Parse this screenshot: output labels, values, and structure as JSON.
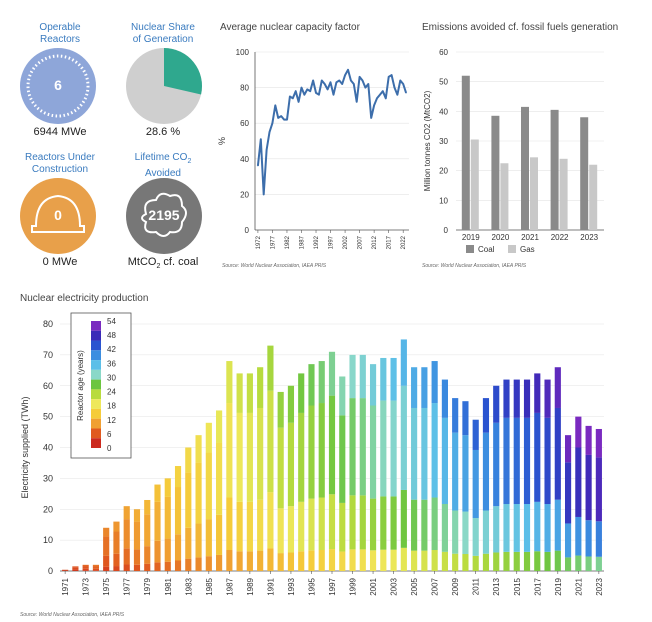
{
  "kpis": {
    "operable": {
      "title_line1": "Operable",
      "title_line2": "Reactors",
      "count": "6",
      "value": "6944 MWe",
      "color": "#8ea6d9"
    },
    "share": {
      "title_line1": "Nuclear Share",
      "title_line2": "of Generation",
      "value": "28.6 %",
      "percent": 28.6,
      "color": "#2fa88e"
    },
    "construction": {
      "title_line1": "Reactors Under",
      "title_line2": "Construction",
      "count": "0",
      "value": "0 MWe",
      "color": "#e8a04a"
    },
    "lifetime": {
      "title_line1": "Lifetime CO",
      "title_sub": "2",
      "title_line2": "Avoided",
      "count": "2195",
      "value": "MtCO",
      "value_sub": "2",
      "value_tail": " cf. coal",
      "color": "#777777"
    }
  },
  "capacity_factor": {
    "title": "Average nuclear capacity factor",
    "source": "Source: World Nuclear Association, IAEA PRIS",
    "chart_data": {
      "type": "line",
      "ylabel": "%",
      "ylim": [
        0,
        100
      ],
      "yticks": [
        0,
        20,
        40,
        60,
        80,
        100
      ],
      "xticks": [
        "1972",
        "1977",
        "1982",
        "1987",
        "1992",
        "1997",
        "2002",
        "2007",
        "2012",
        "2017",
        "2022"
      ],
      "color": "#3d6eab",
      "x": [
        1972,
        1973,
        1974,
        1975,
        1976,
        1977,
        1978,
        1979,
        1980,
        1981,
        1982,
        1983,
        1984,
        1985,
        1986,
        1987,
        1988,
        1989,
        1990,
        1991,
        1992,
        1993,
        1994,
        1995,
        1996,
        1997,
        1998,
        1999,
        2000,
        2001,
        2002,
        2003,
        2004,
        2005,
        2006,
        2007,
        2008,
        2009,
        2010,
        2011,
        2012,
        2013,
        2014,
        2015,
        2016,
        2017,
        2018,
        2019,
        2020,
        2021,
        2022,
        2023
      ],
      "y": [
        36,
        51,
        20,
        45,
        55,
        60,
        70,
        63,
        64,
        62,
        62,
        75,
        74,
        78,
        72,
        80,
        76,
        79,
        78,
        84,
        77,
        76,
        84,
        82,
        79,
        83,
        76,
        83,
        84,
        82,
        87,
        90,
        84,
        82,
        72,
        86,
        84,
        80,
        82,
        63,
        70,
        74,
        76,
        78,
        74,
        86,
        87,
        80,
        76,
        84,
        82,
        77
      ]
    }
  },
  "emissions": {
    "title": "Emissions avoided cf. fossil fuels generation",
    "source": "Source: World Nuclear Association, IAEA PRIS",
    "chart_data": {
      "type": "bar",
      "ylabel": "Million tonnes CO2 (MtCO2)",
      "ylim": [
        0,
        60
      ],
      "yticks": [
        0,
        10,
        20,
        30,
        40,
        50,
        60
      ],
      "categories": [
        "2019",
        "2020",
        "2021",
        "2022",
        "2023"
      ],
      "series": [
        {
          "name": "Coal",
          "color": "#8a8a8a",
          "values": [
            52,
            38.5,
            41.5,
            40.5,
            38
          ]
        },
        {
          "name": "Gas",
          "color": "#c8c8c8",
          "values": [
            30.5,
            22.5,
            24.5,
            24,
            22
          ]
        }
      ]
    }
  },
  "production": {
    "title": "Nuclear electricity production",
    "source": "Source: World Nuclear Association, IAEA PRIS",
    "chart_data": {
      "type": "bar",
      "stacked": true,
      "ylabel": "Electricity supplied (TWh)",
      "ylim": [
        0,
        80
      ],
      "yticks": [
        0,
        10,
        20,
        30,
        40,
        50,
        60,
        70,
        80
      ],
      "xticks": [
        "1971",
        "1973",
        "1975",
        "1977",
        "1979",
        "1981",
        "1983",
        "1985",
        "1987",
        "1989",
        "1991",
        "1993",
        "1995",
        "1997",
        "1999",
        "2001",
        "2003",
        "2005",
        "2007",
        "2009",
        "2011",
        "2013",
        "2015",
        "2017",
        "2019",
        "2021",
        "2023"
      ],
      "years": [
        1971,
        1972,
        1973,
        1974,
        1975,
        1976,
        1977,
        1978,
        1979,
        1980,
        1981,
        1982,
        1983,
        1984,
        1985,
        1986,
        1987,
        1988,
        1989,
        1990,
        1991,
        1992,
        1993,
        1994,
        1995,
        1996,
        1997,
        1998,
        1999,
        2000,
        2001,
        2002,
        2003,
        2004,
        2005,
        2006,
        2007,
        2008,
        2009,
        2010,
        2011,
        2012,
        2013,
        2014,
        2015,
        2016,
        2017,
        2018,
        2019,
        2020,
        2021,
        2022,
        2023
      ],
      "totals": [
        0.4,
        1.5,
        2,
        2,
        14,
        16,
        21,
        20,
        23,
        28,
        30,
        34,
        40,
        44,
        48,
        52,
        68,
        64,
        64,
        66,
        73,
        58,
        60,
        64,
        67,
        68,
        71,
        63,
        70,
        70,
        67,
        69,
        69,
        75,
        66,
        66,
        68,
        62,
        56,
        55,
        49,
        56,
        60,
        62,
        62,
        62,
        64,
        62,
        66,
        44,
        50,
        47,
        46
      ],
      "legend_title": "Reactor age (years)",
      "legend_labels": [
        "54",
        "48",
        "42",
        "36",
        "30",
        "24",
        "18",
        "12",
        "6",
        "0"
      ],
      "color_scale": [
        "#cc2a1e",
        "#e05a1f",
        "#f0a032",
        "#f5cc3a",
        "#eee85a",
        "#b8db3e",
        "#6cc540",
        "#8ad8c8",
        "#5cbfe8",
        "#3c8ee0",
        "#2a54d0",
        "#3a2ab8",
        "#7a2ac0"
      ]
    }
  }
}
